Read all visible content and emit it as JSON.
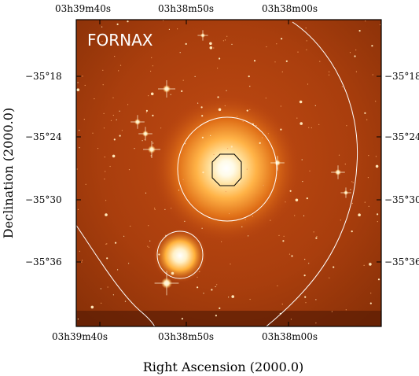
{
  "image": {
    "label": "FORNAX",
    "xlabel": "Right Ascension (2000.0)",
    "ylabel": "Declination (2000.0)",
    "x_ticks_top": [
      "03h39m40s",
      "03h38m50s",
      "03h38m00s"
    ],
    "x_ticks_bottom": [
      "03h39m40s",
      "03h38m50s",
      "03h38m00s"
    ],
    "y_ticks_left": [
      "−35°18",
      "−35°24",
      "−35°30",
      "−35°36"
    ],
    "y_ticks_right": [
      "−35°18",
      "−35°24",
      "−35°30",
      "−35°36"
    ],
    "colors": {
      "background_sky": "#b5420f",
      "sky_dark": "#6e2205",
      "galaxy_core": "#ffffff",
      "galaxy_halo": "#ff9a2a",
      "contour": "#ffffff",
      "inner_contour": "#000000"
    }
  }
}
